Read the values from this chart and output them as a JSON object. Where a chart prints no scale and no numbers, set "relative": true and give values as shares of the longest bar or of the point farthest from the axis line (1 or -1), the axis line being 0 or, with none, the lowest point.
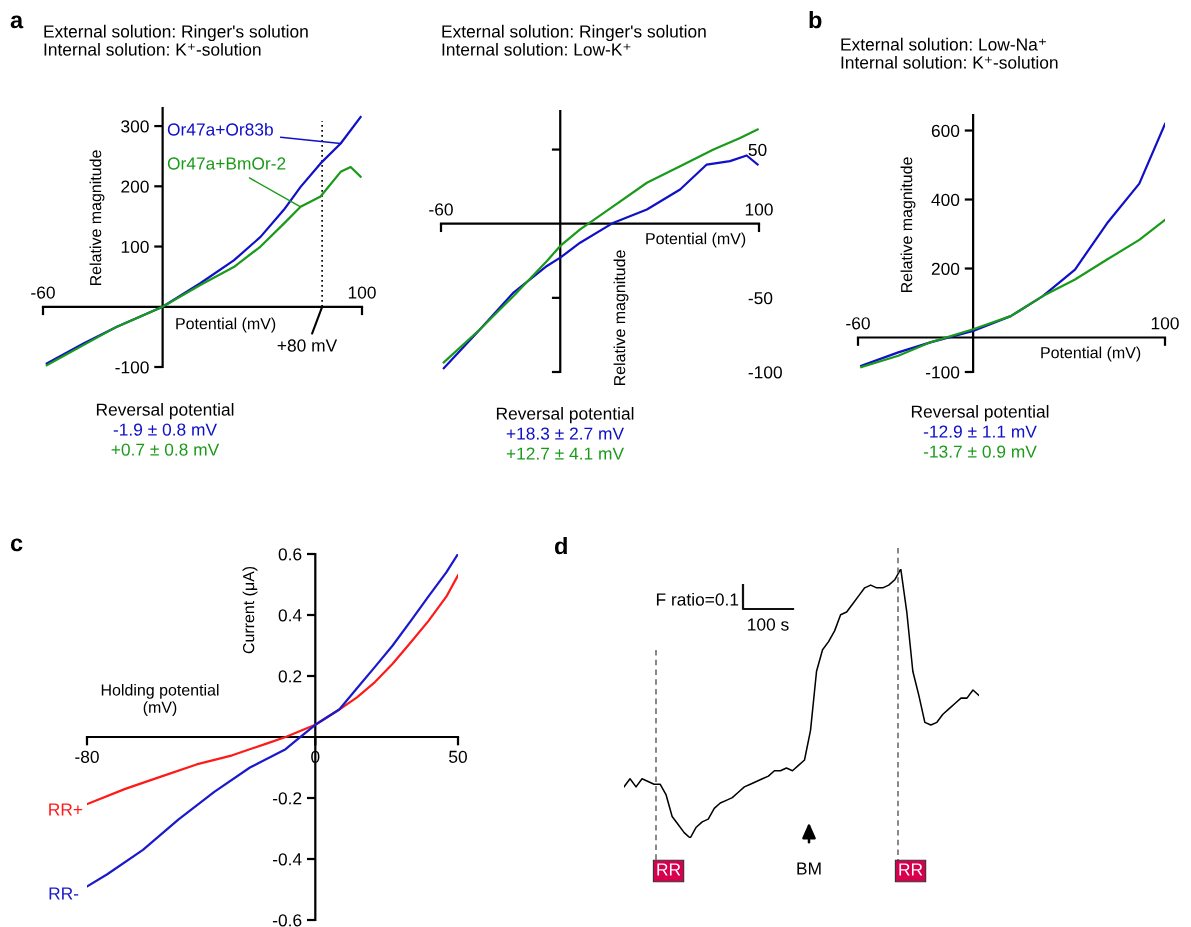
{
  "chart_data": [
    {
      "type": "line",
      "title": "a",
      "subtitle": "External solution: Ringer's solution\nInternal solution: K⁺-solution",
      "xlabel": "Potential (mV)",
      "ylabel": "Relative magnitude",
      "xlim": [
        -60,
        100
      ],
      "xticks": [
        -60,
        100
      ],
      "ylim": [
        -100,
        330
      ],
      "yticks": [
        -100,
        100,
        200,
        300
      ],
      "series": [
        {
          "name": "Or47a+Or83b",
          "color": "#1010c8",
          "x": [
            -58.1,
            -39.7,
            -22.9,
            0,
            18.9,
            35.7,
            49.1,
            60.8,
            69.2,
            79.2,
            89.3,
            99.3
          ],
          "values": [
            -94,
            -61,
            -33,
            0,
            39,
            77,
            116,
            161,
            199,
            238,
            271,
            315
          ]
        },
        {
          "name": "Or47a+BmOr-2",
          "color": "#1a9a1a",
          "x": [
            -58.1,
            -22.9,
            0,
            18.9,
            35.7,
            49.1,
            60.8,
            69.2,
            79.2,
            89.3,
            94.3,
            99.3
          ],
          "values": [
            -97,
            -33,
            0,
            36,
            66,
            100,
            138,
            166,
            183,
            224,
            232,
            216
          ]
        }
      ],
      "ref_lines": [
        {
          "axis": "x",
          "value": 80,
          "label": "+80 mV",
          "line_style": "dotted",
          "color": "#000000"
        }
      ],
      "annotations": [
        "Reversal potential",
        "-1.9 ± 0.8 mV",
        "+0.7 ± 0.8 mV"
      ]
    },
    {
      "type": "line",
      "subtitle": "External solution: Ringer's solution\nInternal solution: Low-K⁺",
      "xlabel": "Potential (mV)",
      "ylabel": "Relative magnitude",
      "xlim": [
        -60,
        100
      ],
      "xticks": [
        -60,
        100
      ],
      "ylim": [
        -100,
        76
      ],
      "yticks": [
        -100,
        -50,
        50
      ],
      "series": [
        {
          "color": "#1010c8",
          "x": [
            -58.6,
            -40.2,
            -23.5,
            -6.7,
            0,
            10,
            26.8,
            43.6,
            60.3,
            73.7,
            85.4,
            93.8,
            99.3
          ],
          "values": [
            -97.5,
            -71,
            -46.4,
            -28.5,
            -22.9,
            -12.8,
            0.7,
            9.6,
            23.1,
            39.9,
            42.2,
            46,
            39.9
          ]
        },
        {
          "color": "#1a9a1a",
          "x": [
            -58.6,
            -40.2,
            -23.5,
            -6.7,
            0,
            10,
            26.8,
            43.6,
            60.3,
            77.1,
            90.5,
            99.3
          ],
          "values": [
            -93.5,
            -71,
            -48.7,
            -25.1,
            -15,
            -3.8,
            11.9,
            27.6,
            38.8,
            50,
            57.8,
            63.5
          ]
        }
      ],
      "annotations": [
        "Reversal potential",
        "+18.3 ± 2.7 mV",
        "+12.7 ± 4.1 mV"
      ]
    },
    {
      "type": "line",
      "title": "b",
      "subtitle": "External solution: Low-Na⁺\nInternal solution: K⁺-solution",
      "xlabel": "Potential (mV)",
      "ylabel": "Relative magnitude",
      "xlim": [
        -60,
        100
      ],
      "xticks": [
        -60,
        100
      ],
      "ylim": [
        -100,
        645
      ],
      "yticks": [
        -100,
        200,
        400,
        600
      ],
      "series": [
        {
          "color": "#1010c8",
          "x": [
            -58.3,
            -39,
            -22.3,
            0,
            19.6,
            36.3,
            53.1,
            69.8,
            86.6,
            100
          ],
          "values": [
            -82,
            -43,
            -14,
            19,
            62,
            120,
            197,
            331,
            446,
            619
          ]
        },
        {
          "color": "#1a9a1a",
          "x": [
            -58.3,
            -39,
            -22.3,
            0,
            19.6,
            36.3,
            53.1,
            69.8,
            86.6,
            100
          ],
          "values": [
            -86,
            -53,
            -14,
            24,
            62,
            120,
            168,
            226,
            283,
            341
          ]
        }
      ],
      "annotations": [
        "Reversal potential",
        "-12.9 ± 1.1 mV",
        "-13.7 ± 0.9 mV"
      ]
    },
    {
      "type": "line",
      "title": "c",
      "xlabel": "Holding potential\n(mV)",
      "ylabel": "Current (μA)",
      "xlim": [
        -80,
        50
      ],
      "xticks": [
        -80,
        0,
        50
      ],
      "ylim": [
        -0.6,
        0.6
      ],
      "yticks": [
        -0.6,
        -0.4,
        -0.2,
        0.2,
        0.4,
        0.6
      ],
      "series": [
        {
          "name": "RR+",
          "color": "#ff1a1a",
          "x": [
            -80,
            -66.6,
            -54.1,
            -41.6,
            -29.1,
            -16.6,
            -10.4,
            0,
            8.4,
            14.6,
            20.9,
            27.1,
            33.4,
            39.6,
            45.9,
            50
          ],
          "values": [
            -0.22,
            -0.17,
            -0.13,
            -0.09,
            -0.06,
            -0.02,
            0,
            0.04,
            0.09,
            0.13,
            0.18,
            0.24,
            0.31,
            0.38,
            0.46,
            0.53
          ]
        },
        {
          "name": "RR-",
          "color": "#1a1acc",
          "x": [
            -80,
            -72.9,
            -60.4,
            -47.9,
            -35.4,
            -22.9,
            -10.4,
            -6.6,
            0,
            8.4,
            14.6,
            20.9,
            27.1,
            33.4,
            39.6,
            45.9,
            50
          ],
          "values": [
            -0.49,
            -0.45,
            -0.37,
            -0.27,
            -0.18,
            -0.1,
            -0.04,
            -0.01,
            0.04,
            0.09,
            0.16,
            0.23,
            0.3,
            0.38,
            0.46,
            0.54,
            0.6
          ]
        }
      ]
    },
    {
      "type": "line",
      "title": "d",
      "relative": true,
      "tick_labels": false,
      "categories": [
        null,
        null,
        null,
        null,
        null,
        null,
        null,
        null,
        null,
        null,
        null,
        null,
        null,
        null,
        null,
        null,
        null,
        null,
        null,
        null,
        null,
        null,
        null,
        null,
        null,
        null,
        null,
        null,
        null,
        null,
        null,
        null,
        null,
        null,
        null,
        null,
        null,
        null,
        null,
        null,
        null,
        null,
        null,
        null,
        null,
        null,
        null,
        null,
        null,
        null,
        null,
        null,
        null,
        null,
        null,
        null,
        null,
        null,
        null,
        null
      ],
      "series": [
        {
          "color": "#000000",
          "values": [
            0.19,
            0.22,
            0.19,
            0.22,
            0.21,
            0.2,
            0.2,
            0.16,
            0.08,
            0.05,
            0.02,
            0,
            0.04,
            0.06,
            0.07,
            0.11,
            0.13,
            0.14,
            0.15,
            0.17,
            0.19,
            0.2,
            0.21,
            0.22,
            0.23,
            0.25,
            0.25,
            0.26,
            0.25,
            0.27,
            0.29,
            0.4,
            0.62,
            0.7,
            0.73,
            0.77,
            0.83,
            0.84,
            0.87,
            0.9,
            0.93,
            0.94,
            0.93,
            0.93,
            0.94,
            0.96,
            1,
            0.84,
            0.62,
            0.53,
            0.43,
            0.42,
            0.43,
            0.46,
            0.48,
            0.5,
            0.52,
            0.52,
            0.55,
            0.53
          ]
        }
      ],
      "annotations": [
        "F ratio=0.1",
        "100 s",
        "RR",
        "BM",
        "RR"
      ]
    }
  ]
}
